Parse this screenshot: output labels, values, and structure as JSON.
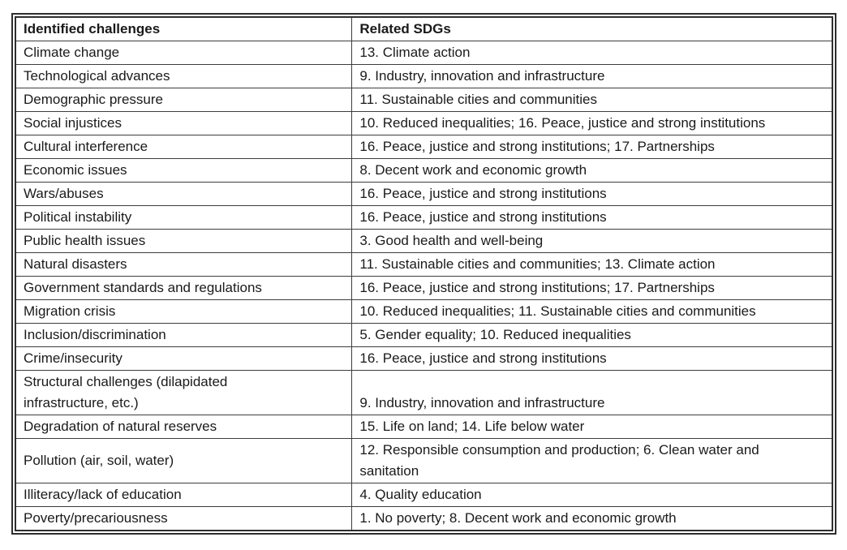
{
  "table": {
    "headers": {
      "challenges": "Identified challenges",
      "sdgs": "Related SDGs"
    },
    "rows": [
      {
        "challenge": "Climate change",
        "sdgs": "13. Climate action"
      },
      {
        "challenge": "Technological advances",
        "sdgs": "9. Industry, innovation and infrastructure"
      },
      {
        "challenge": "Demographic pressure",
        "sdgs": "11. Sustainable cities and communities"
      },
      {
        "challenge": "Social injustices",
        "sdgs": "10. Reduced inequalities; 16. Peace, justice and strong institutions"
      },
      {
        "challenge": "Cultural interference",
        "sdgs": "16. Peace, justice and strong institutions; 17. Partnerships"
      },
      {
        "challenge": "Economic issues",
        "sdgs": "8. Decent work and economic growth"
      },
      {
        "challenge": "Wars/abuses",
        "sdgs": "16. Peace, justice and strong institutions"
      },
      {
        "challenge": "Political instability",
        "sdgs": "16. Peace, justice and strong institutions"
      },
      {
        "challenge": "Public health issues",
        "sdgs": "3. Good health and well-being"
      },
      {
        "challenge": "Natural disasters",
        "sdgs": "11. Sustainable cities and communities; 13. Climate action"
      },
      {
        "challenge": "Government standards and regulations",
        "sdgs": "16. Peace, justice and strong institutions; 17. Partnerships"
      },
      {
        "challenge": "Migration crisis",
        "sdgs": "10. Reduced inequalities; 11. Sustainable cities and communities"
      },
      {
        "challenge": "Inclusion/discrimination",
        "sdgs": "5. Gender equality; 10. Reduced inequalities"
      },
      {
        "challenge": "Crime/insecurity",
        "sdgs": "16. Peace, justice and strong institutions"
      },
      {
        "challenge": "Structural challenges (dilapidated\ninfrastructure, etc.)",
        "sdgs": "9. Industry, innovation and infrastructure"
      },
      {
        "challenge": "Degradation of natural reserves",
        "sdgs": "15. Life on land; 14. Life below water"
      },
      {
        "challenge": "Pollution (air, soil, water)",
        "sdgs": "12. Responsible consumption and production; 6. Clean water and\nsanitation"
      },
      {
        "challenge": "Illiteracy/lack of education",
        "sdgs": "4. Quality education"
      },
      {
        "challenge": "Poverty/precariousness",
        "sdgs": "1. No poverty; 8. Decent work and economic growth"
      }
    ],
    "colors": {
      "text": "#1a1a1a",
      "border": "#2e2e2e",
      "background": "#ffffff"
    }
  }
}
